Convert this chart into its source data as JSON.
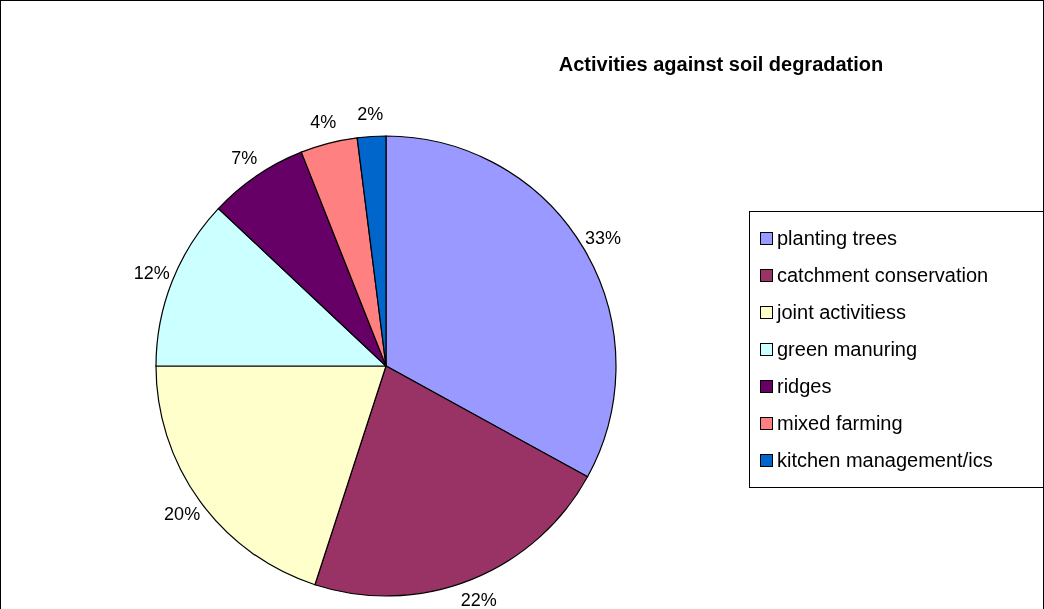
{
  "chart_data": {
    "type": "pie",
    "title": "Activities against soil degradation",
    "categories": [
      "planting trees",
      "catchment conservation",
      "joint activitiess",
      "green manuring",
      "ridges",
      "mixed farming",
      "kitchen management/ics"
    ],
    "values": [
      33,
      22,
      20,
      12,
      7,
      4,
      2
    ],
    "colors": [
      "#9999ff",
      "#993366",
      "#ffffcc",
      "#ccffff",
      "#660066",
      "#ff8080",
      "#0066cc"
    ],
    "value_labels": [
      "33%",
      "22%",
      "20%",
      "12%",
      "7%",
      "4%",
      "2%"
    ],
    "legend": "right"
  }
}
